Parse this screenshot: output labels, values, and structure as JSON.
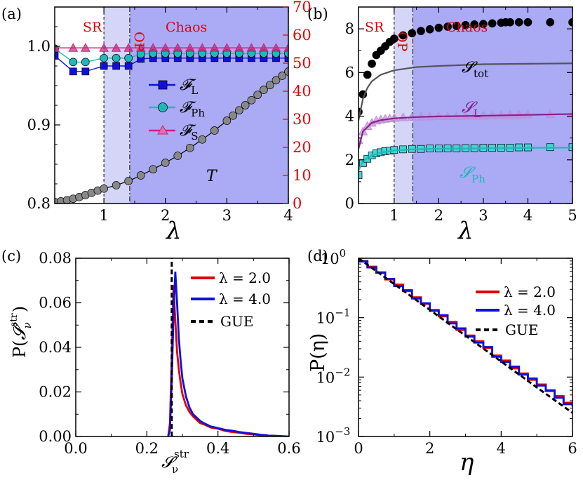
{
  "colors": {
    "chaos": "#aaaaf5",
    "op": "#d5d5f8",
    "red": "#e00000",
    "blue": "#1010dd",
    "cyan": "#20b8b8",
    "magenta": "#d0207a",
    "purple": "#8a1e98",
    "grey": "#555555",
    "black": "#000000"
  },
  "chart_data": [
    {
      "panel": "(a)",
      "type": "line",
      "x_label": "λ",
      "y_label_right": "",
      "xlim": [
        0.2,
        4.0
      ],
      "ylim": [
        0.8,
        1.05
      ],
      "y2lim": [
        0,
        70
      ],
      "x_ticks": [
        "1",
        "2",
        "3",
        "4"
      ],
      "y_ticks": [
        "0.8",
        "0.9",
        "1.0"
      ],
      "y2_ticks": [
        "0",
        "10",
        "20",
        "30",
        "40",
        "50",
        "60",
        "70"
      ],
      "regions": [
        {
          "label": "SR",
          "from": 0.2,
          "to": 1.0
        },
        {
          "label": "OP",
          "from": 1.0,
          "to": 1.42
        },
        {
          "label": "Chaos",
          "from": 1.42,
          "to": 4.0
        }
      ],
      "series": [
        {
          "name": "F_L",
          "legend": "𝓕",
          "sub": "L",
          "marker": "square",
          "color": "blue",
          "x": [
            0.2,
            0.5,
            0.7,
            1.0,
            1.2,
            1.4,
            1.6,
            1.8,
            2.0,
            2.2,
            2.4,
            2.6,
            2.8,
            3.0,
            3.2,
            3.4,
            3.6,
            3.8,
            4.0
          ],
          "values": [
            0.988,
            0.968,
            0.968,
            0.975,
            0.975,
            0.975,
            0.984,
            0.985,
            0.985,
            0.985,
            0.985,
            0.985,
            0.985,
            0.985,
            0.985,
            0.985,
            0.985,
            0.985,
            0.985
          ]
        },
        {
          "name": "F_Ph",
          "legend": "𝓕",
          "sub": "Ph",
          "marker": "circle",
          "color": "cyan",
          "x": [
            0.2,
            0.5,
            0.7,
            1.0,
            1.2,
            1.4,
            1.6,
            1.8,
            2.0,
            2.2,
            2.4,
            2.6,
            2.8,
            3.0,
            3.2,
            3.4,
            3.6,
            3.8,
            4.0
          ],
          "values": [
            0.997,
            0.98,
            0.98,
            0.985,
            0.985,
            0.985,
            0.99,
            0.991,
            0.991,
            0.991,
            0.991,
            0.991,
            0.991,
            0.991,
            0.991,
            0.991,
            0.991,
            0.991,
            0.991
          ]
        },
        {
          "name": "F_S",
          "legend": "𝓕",
          "sub": "S",
          "marker": "triangle",
          "color": "magenta",
          "x": [
            0.2,
            0.5,
            0.7,
            1.0,
            1.2,
            1.4,
            1.6,
            1.8,
            2.0,
            2.2,
            2.4,
            2.6,
            2.8,
            3.0,
            3.2,
            3.4,
            3.6,
            3.8,
            4.0
          ],
          "values": [
            0.998,
            0.998,
            0.998,
            0.998,
            0.998,
            0.998,
            0.998,
            0.998,
            0.998,
            0.998,
            0.998,
            0.998,
            0.998,
            0.998,
            0.998,
            0.998,
            0.998,
            0.998,
            0.998
          ]
        },
        {
          "name": "T",
          "axis": "right",
          "marker": "circle",
          "color": "grey",
          "x": [
            0.2,
            0.3,
            0.4,
            0.5,
            0.6,
            0.7,
            0.8,
            0.9,
            1.0,
            1.2,
            1.4,
            1.6,
            1.8,
            2.0,
            2.2,
            2.4,
            2.6,
            2.8,
            3.0,
            3.1,
            3.2,
            3.3,
            3.4,
            3.5,
            3.6,
            3.7,
            3.8,
            3.9,
            4.0
          ],
          "values": [
            0.5,
            0.8,
            1.2,
            1.7,
            2.3,
            3.0,
            3.8,
            4.6,
            5.3,
            6.5,
            8.0,
            10.0,
            12.2,
            14.5,
            17.0,
            19.8,
            22.8,
            26.0,
            29.5,
            31.3,
            33.2,
            35.0,
            36.8,
            38.7,
            40.5,
            42.2,
            43.9,
            45.5,
            47.0
          ]
        }
      ],
      "annotation": "T"
    },
    {
      "panel": "(b)",
      "type": "line",
      "x_label": "λ",
      "xlim": [
        0.2,
        5.0
      ],
      "ylim": [
        0,
        9
      ],
      "x_ticks": [
        "1",
        "2",
        "3",
        "4",
        "5"
      ],
      "y_ticks": [
        "0",
        "2",
        "4",
        "6",
        "8"
      ],
      "regions": [
        {
          "label": "SR",
          "from": 0.2,
          "to": 1.0
        },
        {
          "label": "OP",
          "from": 1.0,
          "to": 1.42
        },
        {
          "label": "Chaos",
          "from": 1.42,
          "to": 5.0
        }
      ],
      "series": [
        {
          "name": "S_tot points",
          "marker": "circle",
          "color": "black",
          "x": [
            0.2,
            0.3,
            0.4,
            0.5,
            0.6,
            0.7,
            0.8,
            0.9,
            1.0,
            1.2,
            1.4,
            1.6,
            1.8,
            2.0,
            2.2,
            2.4,
            2.6,
            2.8,
            3.0,
            3.2,
            3.4,
            3.5,
            3.6,
            3.8,
            4.0,
            4.5,
            5.0
          ],
          "values": [
            4.2,
            5.0,
            5.9,
            6.4,
            6.8,
            7.0,
            7.2,
            7.4,
            7.55,
            7.7,
            7.8,
            7.9,
            7.98,
            8.05,
            8.1,
            8.13,
            8.17,
            8.2,
            8.22,
            8.25,
            8.28,
            8.3,
            8.3,
            8.3,
            8.3,
            8.3,
            8.3
          ]
        },
        {
          "name": "S_tot curve",
          "marker": "none",
          "color": "grey",
          "x": [
            0.2,
            0.3,
            0.4,
            0.5,
            0.7,
            1.0,
            1.5,
            2.0,
            3.0,
            4.0,
            5.0
          ],
          "values": [
            3.8,
            4.8,
            5.3,
            5.6,
            5.9,
            6.1,
            6.25,
            6.3,
            6.38,
            6.4,
            6.42
          ]
        },
        {
          "name": "S_L points",
          "marker": "triangle",
          "color": "purple",
          "x": [
            0.2,
            0.3,
            0.4,
            0.5,
            0.6,
            0.7,
            0.8,
            0.9,
            1.0,
            1.2,
            1.4,
            1.6,
            1.8,
            2.0,
            2.2,
            2.4,
            2.6,
            2.8,
            3.0,
            3.2,
            3.4,
            3.6,
            3.8,
            4.0,
            4.5,
            5.0
          ],
          "values": [
            2.9,
            3.3,
            3.55,
            3.7,
            3.8,
            3.85,
            3.88,
            3.9,
            3.92,
            3.95,
            3.97,
            3.98,
            3.99,
            4.0,
            4.0,
            4.01,
            4.02,
            4.02,
            4.03,
            4.04,
            4.05,
            4.06,
            4.07,
            4.08,
            4.1,
            4.12
          ]
        },
        {
          "name": "S_L curve",
          "marker": "none",
          "color": "purple",
          "x": [
            0.2,
            0.3,
            0.5,
            0.7,
            1.0,
            1.5,
            2.0,
            3.0,
            4.0,
            5.0
          ],
          "values": [
            2.5,
            3.3,
            3.7,
            3.82,
            3.9,
            3.96,
            3.99,
            4.02,
            4.06,
            4.1
          ]
        },
        {
          "name": "S_Ph points",
          "marker": "square",
          "color": "cyan",
          "x": [
            0.2,
            0.3,
            0.4,
            0.5,
            0.6,
            0.7,
            0.8,
            0.9,
            1.0,
            1.2,
            1.4,
            1.6,
            1.8,
            2.0,
            2.2,
            2.4,
            2.6,
            2.8,
            3.0,
            3.2,
            3.4,
            3.6,
            3.8,
            4.0,
            4.5,
            5.0
          ],
          "values": [
            1.3,
            1.85,
            2.05,
            2.2,
            2.3,
            2.35,
            2.4,
            2.42,
            2.45,
            2.48,
            2.5,
            2.5,
            2.52,
            2.52,
            2.53,
            2.53,
            2.54,
            2.54,
            2.55,
            2.55,
            2.56,
            2.56,
            2.57,
            2.57,
            2.58,
            2.58
          ]
        },
        {
          "name": "S_Ph curve",
          "marker": "none",
          "color": "cyan",
          "x": [
            0.2,
            0.3,
            0.5,
            0.7,
            1.0,
            1.5,
            2.0,
            3.0,
            4.0,
            5.0
          ],
          "values": [
            1.5,
            1.95,
            2.2,
            2.33,
            2.43,
            2.49,
            2.51,
            2.53,
            2.55,
            2.56
          ]
        }
      ],
      "annotations": [
        {
          "text": "𝓢",
          "sub": "tot",
          "color": "black"
        },
        {
          "text": "𝓢",
          "sub": "L",
          "color": "purple"
        },
        {
          "text": "𝓢",
          "sub": "Ph",
          "color": "cyan"
        }
      ]
    },
    {
      "panel": "(c)",
      "type": "line",
      "xlim": [
        0.0,
        0.6
      ],
      "ylim": [
        0.0,
        0.08
      ],
      "x_ticks": [
        "0.0",
        "0.2",
        "0.4",
        "0.6"
      ],
      "y_ticks": [
        "0.00",
        "0.02",
        "0.04",
        "0.06",
        "0.08"
      ],
      "x_label_main": "𝓢",
      "x_label_sup": "str",
      "x_label_sub": "ν",
      "y_label_prefix": "P(",
      "y_label_main": "𝓢",
      "y_label_sup": "str",
      "y_label_sub": "ν",
      "y_label_suffix": ")",
      "series": [
        {
          "name": "λ = 2.0",
          "color": "red",
          "x": [
            0.26,
            0.265,
            0.27,
            0.275,
            0.28,
            0.285,
            0.29,
            0.295,
            0.3,
            0.31,
            0.32,
            0.33,
            0.34,
            0.35,
            0.36,
            0.38,
            0.4,
            0.42,
            0.44,
            0.46,
            0.48,
            0.5,
            0.52,
            0.54,
            0.56,
            0.58,
            0.6
          ],
          "values": [
            0.0,
            0.006,
            0.035,
            0.068,
            0.052,
            0.038,
            0.03,
            0.024,
            0.019,
            0.014,
            0.011,
            0.009,
            0.0075,
            0.006,
            0.0055,
            0.004,
            0.0035,
            0.0025,
            0.002,
            0.0017,
            0.0012,
            0.0009,
            0.0006,
            0.0004,
            0.0002,
            0.0001,
            0.0
          ]
        },
        {
          "name": "λ = 4.0",
          "color": "blue",
          "x": [
            0.26,
            0.265,
            0.27,
            0.275,
            0.28,
            0.285,
            0.29,
            0.295,
            0.3,
            0.31,
            0.32,
            0.33,
            0.34,
            0.35,
            0.36,
            0.38,
            0.4,
            0.42,
            0.44,
            0.46,
            0.48,
            0.5,
            0.52,
            0.54,
            0.56,
            0.58,
            0.6
          ],
          "values": [
            0.0,
            0.003,
            0.025,
            0.055,
            0.074,
            0.06,
            0.044,
            0.034,
            0.026,
            0.018,
            0.013,
            0.01,
            0.0085,
            0.007,
            0.006,
            0.0045,
            0.0038,
            0.003,
            0.0026,
            0.002,
            0.0016,
            0.0012,
            0.0008,
            0.0005,
            0.0003,
            0.0001,
            0.0
          ]
        },
        {
          "name": "GUE",
          "color": "black",
          "dashed": true,
          "x": [
            0.27,
            0.27
          ],
          "values": [
            0.0,
            0.08
          ]
        }
      ]
    },
    {
      "panel": "(d)",
      "type": "line",
      "yscale": "log",
      "xlim": [
        0,
        6
      ],
      "ylim": [
        0.001,
        1.0
      ],
      "x_ticks": [
        "0",
        "2",
        "4",
        "6"
      ],
      "y_tick_base": "10",
      "y_tick_exps": [
        "0",
        "−1",
        "−2",
        "−3"
      ],
      "x_label": "η",
      "y_label": "P(η)",
      "series": [
        {
          "name": "λ = 2.0",
          "color": "red",
          "step": true,
          "x": [
            0.0,
            0.25,
            0.5,
            0.75,
            1.0,
            1.25,
            1.5,
            1.75,
            2.0,
            2.25,
            2.5,
            2.75,
            3.0,
            3.25,
            3.5,
            3.75,
            4.0,
            4.25,
            4.5,
            4.75,
            5.0,
            5.25,
            5.5,
            5.75,
            6.0
          ],
          "values": [
            0.9,
            0.72,
            0.58,
            0.44,
            0.36,
            0.28,
            0.22,
            0.17,
            0.135,
            0.105,
            0.085,
            0.062,
            0.05,
            0.04,
            0.031,
            0.023,
            0.019,
            0.014,
            0.0115,
            0.009,
            0.0075,
            0.0058,
            0.0048,
            0.0037,
            0.0037
          ]
        },
        {
          "name": "λ = 4.0",
          "color": "blue",
          "step": true,
          "x": [
            0.0,
            0.25,
            0.5,
            0.75,
            1.0,
            1.25,
            1.5,
            1.75,
            2.0,
            2.25,
            2.5,
            2.75,
            3.0,
            3.25,
            3.5,
            3.75,
            4.0,
            4.25,
            4.5,
            4.75,
            5.0,
            5.25,
            5.5,
            5.75,
            6.0
          ],
          "values": [
            0.88,
            0.7,
            0.57,
            0.45,
            0.34,
            0.29,
            0.21,
            0.175,
            0.13,
            0.11,
            0.08,
            0.066,
            0.048,
            0.038,
            0.032,
            0.022,
            0.018,
            0.015,
            0.011,
            0.0095,
            0.0072,
            0.006,
            0.0045,
            0.0035,
            0.0032
          ]
        },
        {
          "name": "GUE",
          "color": "black",
          "dashed": true,
          "x": [
            0.0,
            1.0,
            2.0,
            3.0,
            4.0,
            5.0,
            6.0
          ],
          "values": [
            1.0,
            0.368,
            0.135,
            0.0498,
            0.0183,
            0.0067,
            0.0025
          ]
        }
      ]
    }
  ]
}
